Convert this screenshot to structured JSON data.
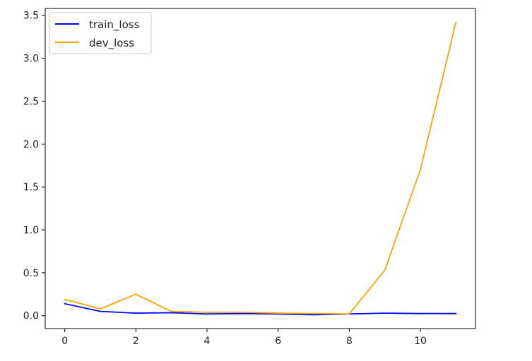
{
  "chart_data": {
    "type": "line",
    "title": "",
    "xlabel": "",
    "ylabel": "",
    "x": [
      0,
      1,
      2,
      3,
      4,
      5,
      6,
      7,
      8,
      9,
      10,
      11
    ],
    "xlim": [
      -0.55,
      11.55
    ],
    "ylim": [
      -0.15,
      3.58
    ],
    "xticks": [
      0,
      2,
      4,
      6,
      8,
      10
    ],
    "yticks": [
      0.0,
      0.5,
      1.0,
      1.5,
      2.0,
      2.5,
      3.0,
      3.5
    ],
    "xtick_labels": [
      "0",
      "2",
      "4",
      "6",
      "8",
      "10"
    ],
    "ytick_labels": [
      "0.0",
      "0.5",
      "1.0",
      "1.5",
      "2.0",
      "2.5",
      "3.0",
      "3.5"
    ],
    "grid": false,
    "legend_position": "top-left",
    "series": [
      {
        "name": "train_loss",
        "color": "#0000ff",
        "values": [
          0.14,
          0.05,
          0.03,
          0.035,
          0.02,
          0.025,
          0.02,
          0.01,
          0.02,
          0.03,
          0.025,
          0.025
        ]
      },
      {
        "name": "dev_loss",
        "color": "#ffa500",
        "values": [
          0.19,
          0.08,
          0.25,
          0.05,
          0.04,
          0.04,
          0.03,
          0.025,
          0.02,
          0.53,
          1.7,
          3.42
        ]
      }
    ]
  }
}
